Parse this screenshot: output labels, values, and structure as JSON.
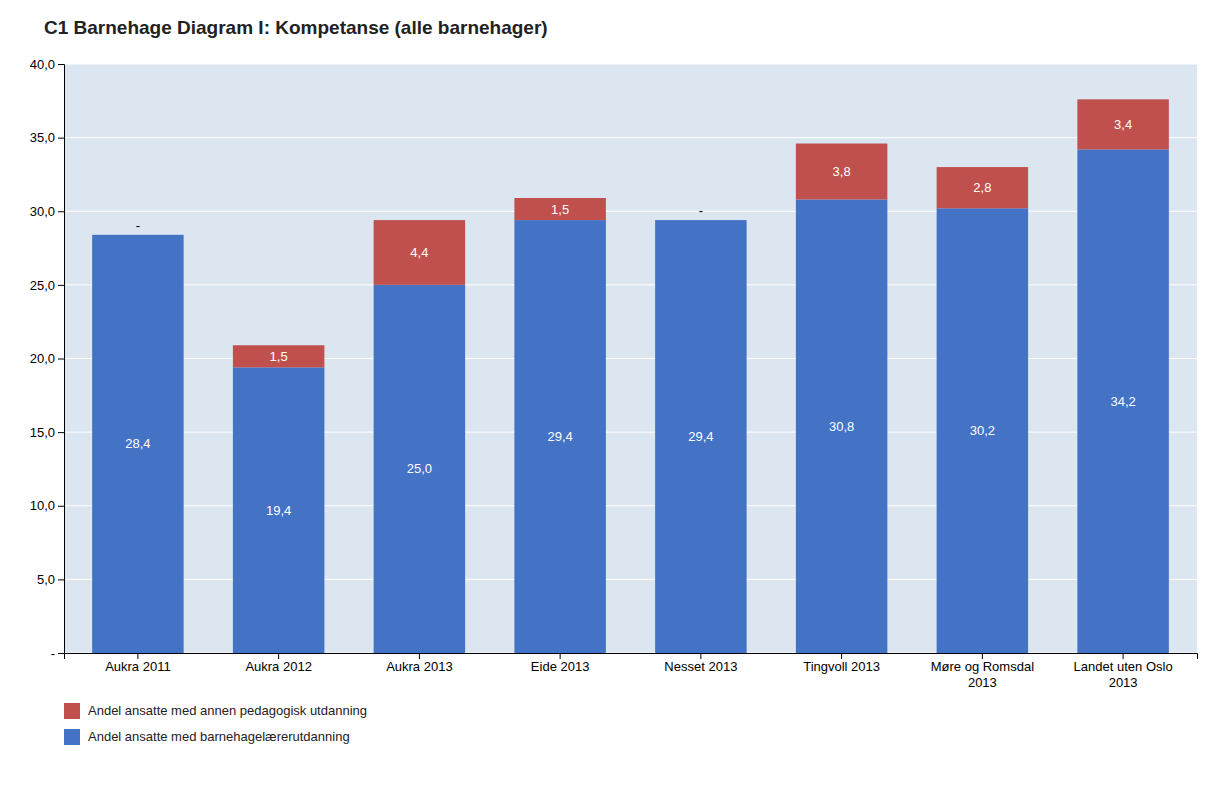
{
  "chart_data": {
    "type": "bar",
    "stacked": true,
    "title": "C1 Barnehage Diagram I: Kompetanse (alle barnehager)",
    "categories": [
      "Aukra 2011",
      "Aukra 2012",
      "Aukra 2013",
      "Eide 2013",
      "Nesset 2013",
      "Tingvoll 2013",
      "Møre og Romsdal\n2013",
      "Landet uten Oslo\n2013"
    ],
    "series": [
      {
        "name": "Andel ansatte med barnehagelærerutdanning",
        "color": "#4472C4",
        "values": [
          28.4,
          19.4,
          25.0,
          29.4,
          29.4,
          30.8,
          30.2,
          34.2
        ],
        "value_labels": [
          "28,4",
          "19,4",
          "25,0",
          "29,4",
          "29,4",
          "30,8",
          "30,2",
          "34,2"
        ]
      },
      {
        "name": "Andel ansatte med annen pedagogisk utdanning",
        "color": "#C0504D",
        "values": [
          0.0,
          1.5,
          4.4,
          1.5,
          0.0,
          3.8,
          2.8,
          3.4
        ],
        "value_labels": [
          "-",
          "1,5",
          "4,4",
          "1,5",
          "-",
          "3,8",
          "2,8",
          "3,4"
        ]
      }
    ],
    "ylim": [
      0,
      40
    ],
    "yticks": [
      {
        "value": 0,
        "label": "-"
      },
      {
        "value": 5.0,
        "label": "5,0"
      },
      {
        "value": 10.0,
        "label": "10,0"
      },
      {
        "value": 15.0,
        "label": "15,0"
      },
      {
        "value": 20.0,
        "label": "20,0"
      },
      {
        "value": 25.0,
        "label": "25,0"
      },
      {
        "value": 30.0,
        "label": "30,0"
      },
      {
        "value": 35.0,
        "label": "35,0"
      },
      {
        "value": 40.0,
        "label": "40,0"
      }
    ],
    "grid": true,
    "data_labels": true,
    "legend": "bottom"
  }
}
